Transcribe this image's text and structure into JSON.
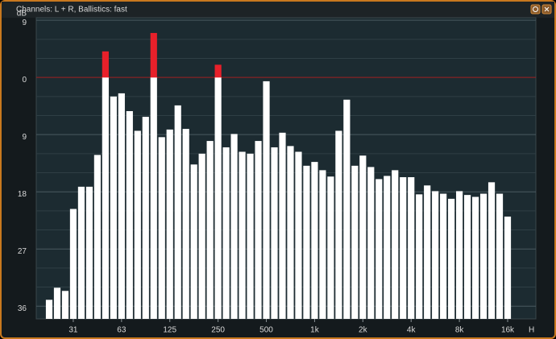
{
  "chart_data": {
    "type": "bar",
    "title": "Channels: L + R, Ballistics: fast",
    "y_label": "dB",
    "x_label": "H",
    "categories": [
      null,
      null,
      null,
      "31",
      null,
      null,
      null,
      null,
      null,
      "63",
      null,
      null,
      null,
      null,
      null,
      "125",
      null,
      null,
      null,
      null,
      null,
      "250",
      null,
      null,
      null,
      null,
      null,
      "500",
      null,
      null,
      null,
      null,
      null,
      "1k",
      null,
      null,
      null,
      null,
      null,
      "2k",
      null,
      null,
      null,
      null,
      null,
      "4k",
      null,
      null,
      null,
      null,
      null,
      "8k",
      null,
      null,
      null,
      null,
      null,
      "16k"
    ],
    "values": [
      -35.0,
      -33.1,
      -33.6,
      -20.7,
      -17.2,
      -17.2,
      -12.2,
      4.1,
      -3.0,
      -2.5,
      -5.3,
      -8.4,
      -6.2,
      7.0,
      -9.4,
      -8.2,
      -4.4,
      -8.1,
      -13.7,
      -12.0,
      -10.0,
      2.0,
      -11.0,
      -8.9,
      -11.7,
      -12.0,
      -10.0,
      -0.6,
      -11.0,
      -8.7,
      -10.8,
      -11.7,
      -13.9,
      -13.3,
      -14.6,
      -15.6,
      -8.4,
      -3.5,
      -13.9,
      -12.3,
      -14.1,
      -16.0,
      -15.5,
      -14.6,
      -15.7,
      -15.7,
      -18.4,
      -17.0,
      -17.9,
      -18.3,
      -19.1,
      -17.9,
      -18.5,
      -18.8,
      -18.3,
      -16.5,
      -18.3,
      -21.9
    ],
    "color": "#ffffff",
    "peak_color": "#e8202a",
    "peak_level": 0,
    "ylim": [
      -38,
      9.4
    ],
    "yticks": [
      9,
      0,
      {
        "value": -9,
        "label": "9"
      },
      {
        "value": -18,
        "label": "18"
      },
      {
        "value": -27,
        "label": "27"
      },
      {
        "value": -36,
        "label": "36"
      }
    ],
    "grid": true,
    "minor_grid": 3
  }
}
